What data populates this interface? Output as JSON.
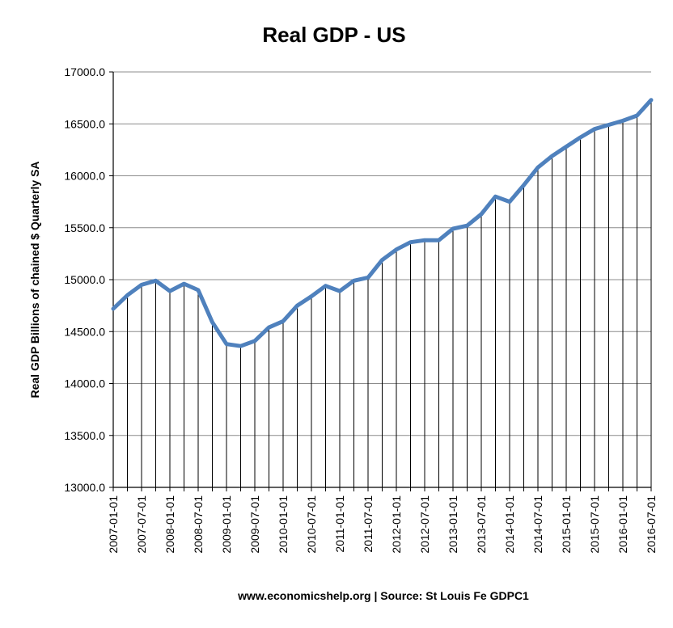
{
  "chart_data": {
    "type": "line",
    "title": "Real GDP - US",
    "xlabel": "www.economicshelp.org | Source: St Louis Fe GDPC1",
    "ylabel": "Real GDP  Billions of chained $ Quarterly SA",
    "ylim": [
      13000,
      17000
    ],
    "y_ticks": [
      "13000.0",
      "13500.0",
      "14000.0",
      "14500.0",
      "15000.0",
      "15500.0",
      "16000.0",
      "16500.0",
      "17000.0"
    ],
    "x_tick_labels": [
      "2007-01-01",
      "2007-07-01",
      "2008-01-01",
      "2008-07-01",
      "2009-01-01",
      "2009-07-01",
      "2010-01-01",
      "2010-07-01",
      "2011-01-01",
      "2011-07-01",
      "2012-01-01",
      "2012-07-01",
      "2013-01-01",
      "2013-07-01",
      "2014-01-01",
      "2014-07-01",
      "2015-01-01",
      "2015-07-01",
      "2016-01-01",
      "2016-07-01"
    ],
    "grid": "horizontal gridlines, vertical drop lines at each quarter",
    "line_color": "#4f81bd",
    "x": [
      "2007-01-01",
      "2007-04-01",
      "2007-07-01",
      "2007-10-01",
      "2008-01-01",
      "2008-04-01",
      "2008-07-01",
      "2008-10-01",
      "2009-01-01",
      "2009-04-01",
      "2009-07-01",
      "2009-10-01",
      "2010-01-01",
      "2010-04-01",
      "2010-07-01",
      "2010-10-01",
      "2011-01-01",
      "2011-04-01",
      "2011-07-01",
      "2011-10-01",
      "2012-01-01",
      "2012-04-01",
      "2012-07-01",
      "2012-10-01",
      "2013-01-01",
      "2013-04-01",
      "2013-07-01",
      "2013-10-01",
      "2014-01-01",
      "2014-04-01",
      "2014-07-01",
      "2014-10-01",
      "2015-01-01",
      "2015-04-01",
      "2015-07-01",
      "2015-10-01",
      "2016-01-01",
      "2016-04-01",
      "2016-07-01"
    ],
    "series": [
      {
        "values": [
          14720,
          14850,
          14950,
          14990,
          14890,
          14960,
          14900,
          14590,
          14380,
          14360,
          14410,
          14540,
          14600,
          14750,
          14840,
          14940,
          14890,
          14990,
          15020,
          15190,
          15290,
          15360,
          15380,
          15380,
          15490,
          15520,
          15630,
          15800,
          15750,
          15910,
          16080,
          16190,
          16280,
          16370,
          16450,
          16490,
          16530,
          16580,
          16730
        ]
      }
    ]
  }
}
